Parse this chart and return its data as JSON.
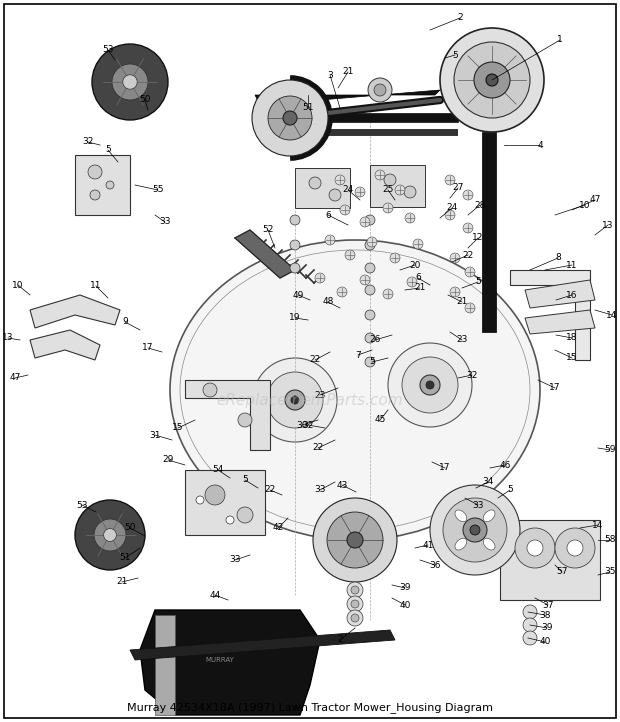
{
  "title": "Murray 42534X18A (1997) Lawn Tractor Mower_Housing Diagram",
  "background_color": "#ffffff",
  "border_color": "#000000",
  "watermark_text": "eReplacementParts.com",
  "watermark_color": "#bbbbbb",
  "watermark_fontsize": 11,
  "title_fontsize": 8,
  "title_color": "#000000",
  "fig_width": 6.2,
  "fig_height": 7.22,
  "dpi": 100,
  "border_linewidth": 1.2,
  "label_fontsize": 6.5
}
